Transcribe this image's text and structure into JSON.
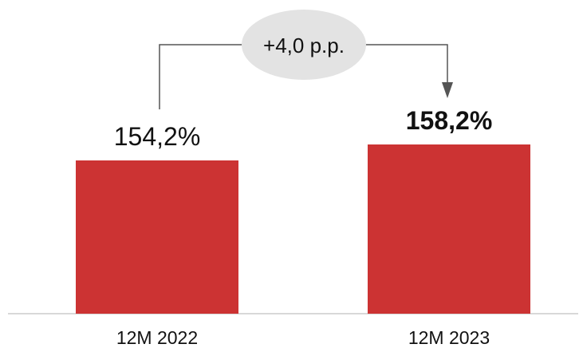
{
  "chart_data": {
    "type": "bar",
    "categories": [
      "12M 2022",
      "12M 2023"
    ],
    "values": [
      154.2,
      158.2
    ],
    "data_labels": [
      "154,2%",
      "158,2%"
    ],
    "highlighted": [
      false,
      true
    ],
    "annotation": {
      "text": "+4,0 p.p.",
      "from": "12M 2022",
      "to": "12M 2023"
    },
    "title": "",
    "xlabel": "",
    "ylabel": "",
    "ylim": [
      0,
      160
    ],
    "grid": false,
    "legend": "none",
    "colors": {
      "bar": "#cc3333",
      "baseline": "#cccccc",
      "bubble": "#e3e3e3",
      "connector": "#555555"
    }
  }
}
